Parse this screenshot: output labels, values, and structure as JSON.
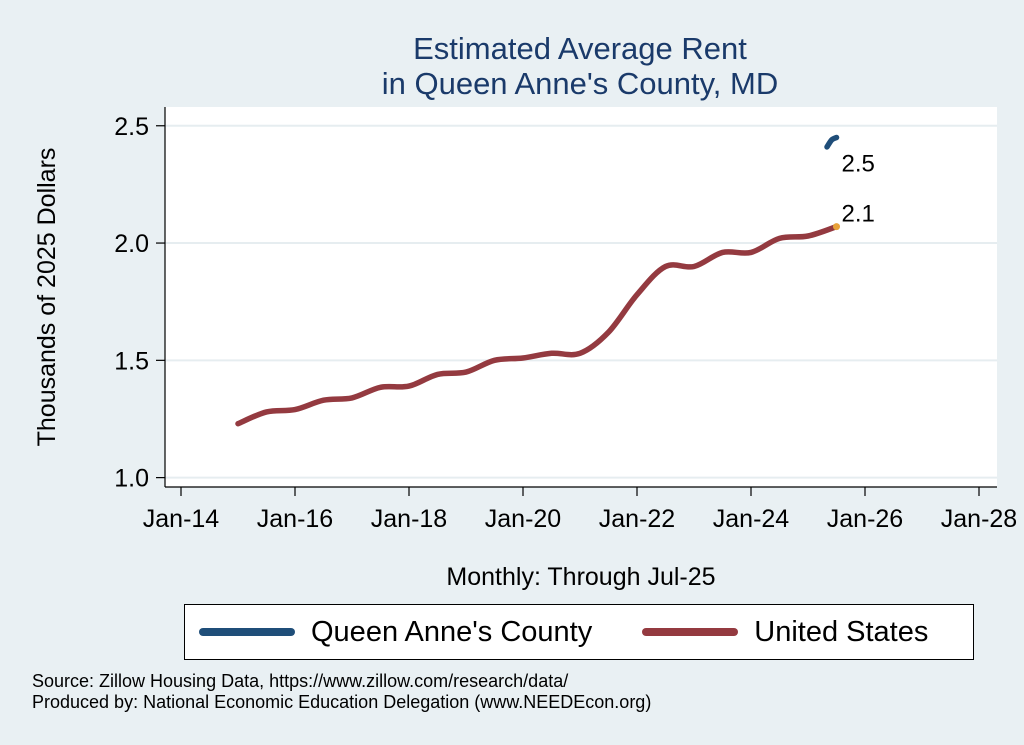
{
  "colors": {
    "queen_annes": "#1f4e79",
    "united_states": "#943a40",
    "us_endpoint": "#e8a23a",
    "title": "#1a3a6a"
  },
  "legend": {
    "item1": "Queen Anne's County",
    "item2": "United States"
  },
  "source": {
    "line1": "Source: Zillow Housing Data, https://www.zillow.com/research/data/",
    "line2": "Produced by: National Economic Education Delegation (www.NEEDEcon.org)"
  },
  "chart_data": {
    "type": "line",
    "title": [
      "Estimated Average Rent",
      "in Queen Anne's County, MD"
    ],
    "xlabel": "Monthly: Through Jul-25",
    "ylabel": "Thousands of 2025 Dollars",
    "xlim": [
      "2014-01",
      "2028-01"
    ],
    "ylim": [
      0.96,
      2.58
    ],
    "x_ticks": [
      "Jan-14",
      "Jan-16",
      "Jan-18",
      "Jan-20",
      "Jan-22",
      "Jan-24",
      "Jan-26",
      "Jan-28"
    ],
    "y_ticks": [
      "1.0",
      "1.5",
      "2.0",
      "2.5"
    ],
    "grid": true,
    "legend_position": "bottom",
    "series": [
      {
        "name": "Queen Anne's County",
        "end_label": "2.5",
        "points": [
          [
            "2025-05",
            2.41
          ],
          [
            "2025-06",
            2.44
          ],
          [
            "2025-07",
            2.45
          ]
        ]
      },
      {
        "name": "United States",
        "end_label": "2.1",
        "points": [
          [
            "2015-01",
            1.23
          ],
          [
            "2015-07",
            1.28
          ],
          [
            "2016-01",
            1.29
          ],
          [
            "2016-07",
            1.33
          ],
          [
            "2017-01",
            1.34
          ],
          [
            "2017-07",
            1.385
          ],
          [
            "2018-01",
            1.39
          ],
          [
            "2018-07",
            1.44
          ],
          [
            "2019-01",
            1.45
          ],
          [
            "2019-07",
            1.5
          ],
          [
            "2020-01",
            1.51
          ],
          [
            "2020-07",
            1.53
          ],
          [
            "2021-01",
            1.53
          ],
          [
            "2021-07",
            1.62
          ],
          [
            "2022-01",
            1.78
          ],
          [
            "2022-07",
            1.9
          ],
          [
            "2023-01",
            1.9
          ],
          [
            "2023-07",
            1.96
          ],
          [
            "2024-01",
            1.96
          ],
          [
            "2024-07",
            2.02
          ],
          [
            "2025-01",
            2.03
          ],
          [
            "2025-07",
            2.07
          ]
        ]
      }
    ]
  }
}
